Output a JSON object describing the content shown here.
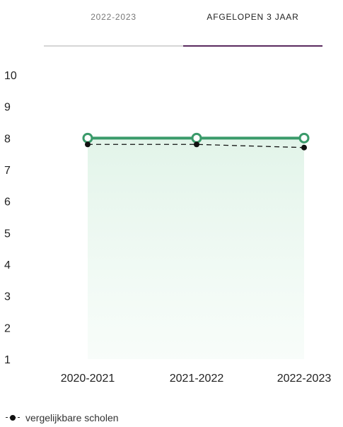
{
  "tabs": [
    {
      "label": "2022-2023",
      "active": false
    },
    {
      "label": "AFGELOPEN 3 JAAR",
      "active": true
    }
  ],
  "chart_data": {
    "type": "line",
    "categories": [
      "2020-2021",
      "2021-2022",
      "2022-2023"
    ],
    "ylim": [
      1,
      10
    ],
    "yticks": [
      1,
      2,
      3,
      4,
      5,
      6,
      7,
      8,
      9,
      10
    ],
    "grid": false,
    "series": [
      {
        "name": "",
        "values": [
          8.0,
          8.0,
          8.0
        ],
        "color": "#3a9a6a",
        "style": "solid",
        "marker": "hollow-circle",
        "fill": true
      },
      {
        "name": "vergelijkbare scholen",
        "values": [
          7.8,
          7.8,
          7.7
        ],
        "color": "#111111",
        "style": "dashed",
        "marker": "filled-circle"
      }
    ],
    "legend_position": "bottom-left"
  }
}
